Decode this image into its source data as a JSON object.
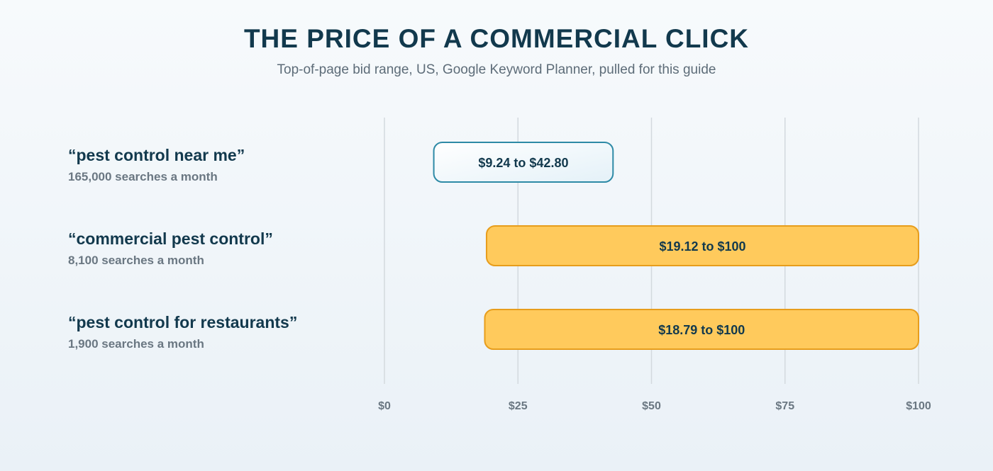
{
  "chart_data": {
    "type": "bar",
    "orientation": "horizontal-range",
    "title": "THE PRICE OF A COMMERCIAL CLICK",
    "subtitle": "Top-of-page bid range, US, Google Keyword Planner, pulled for this guide",
    "xlim": [
      0,
      100
    ],
    "grid": true,
    "ticks": [
      {
        "value": 0,
        "label": "$0"
      },
      {
        "value": 25,
        "label": "$25"
      },
      {
        "value": 50,
        "label": "$50"
      },
      {
        "value": 75,
        "label": "$75"
      },
      {
        "value": 100,
        "label": "$100"
      }
    ],
    "rows": [
      {
        "name": "“pest control near me”",
        "volume": "165,000 searches a month",
        "low": 9.24,
        "high": 42.8,
        "label": "$9.24 to $42.80",
        "fill": "#f3f9fc",
        "stroke": "#2e8aa6"
      },
      {
        "name": "“commercial pest control”",
        "volume": "8,100 searches a month",
        "low": 19.12,
        "high": 100,
        "label": "$19.12 to $100",
        "fill": "#ffca5c",
        "stroke": "#e79d1c"
      },
      {
        "name": "“pest control for restaurants”",
        "volume": "1,900 searches a month",
        "low": 18.79,
        "high": 100,
        "label": "$18.79 to $100",
        "fill": "#ffca5c",
        "stroke": "#e79d1c"
      }
    ]
  }
}
